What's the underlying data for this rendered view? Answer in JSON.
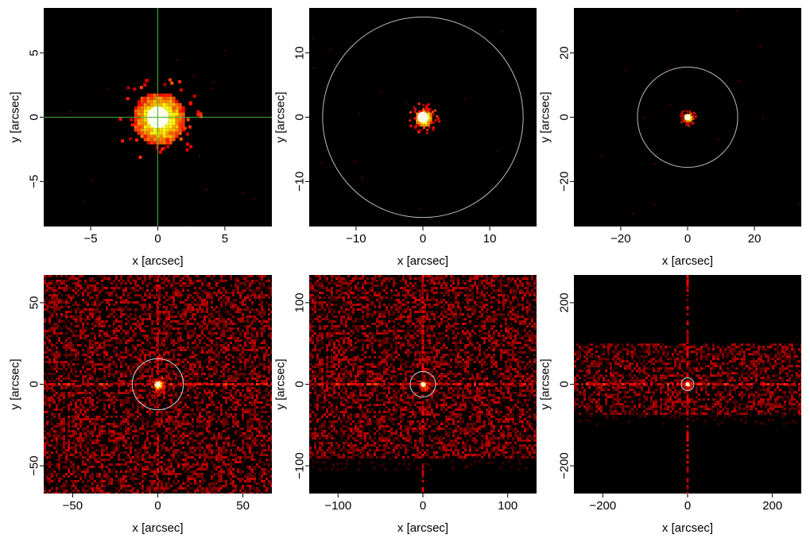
{
  "chart_data": [
    {
      "type": "heatmap",
      "xlabel": "x [arcsec]",
      "ylabel": "y [arcsec]",
      "xlim": [
        -8.5,
        8.5
      ],
      "ylim": [
        -8.5,
        8.5
      ],
      "xticks": [
        -5,
        0,
        5
      ],
      "yticks": [
        -5,
        0,
        5
      ],
      "overlay": "crosshair",
      "overlay_color": "#3fae3f",
      "source_center": [
        0,
        0
      ],
      "source_core_radius": 0.8,
      "source_halo_radius": 2.0,
      "background": "none"
    },
    {
      "type": "heatmap",
      "xlabel": "x [arcsec]",
      "ylabel": "y [arcsec]",
      "xlim": [
        -17,
        17
      ],
      "ylim": [
        -17,
        17
      ],
      "xticks": [
        -10,
        0,
        10
      ],
      "yticks": [
        -10,
        0,
        10
      ],
      "overlay": "circle",
      "overlay_radius": 15,
      "overlay_color": "#bbbbbb",
      "source_center": [
        0,
        0
      ],
      "source_core_radius": 0.8,
      "source_halo_radius": 1.4,
      "background": "none"
    },
    {
      "type": "heatmap",
      "xlabel": "x [arcsec]",
      "ylabel": "y [arcsec]",
      "xlim": [
        -34,
        34
      ],
      "ylim": [
        -34,
        34
      ],
      "xticks": [
        -20,
        0,
        20
      ],
      "yticks": [
        -20,
        0,
        20
      ],
      "overlay": "circle",
      "overlay_radius": 15,
      "overlay_color": "#bbbbbb",
      "source_center": [
        0,
        0
      ],
      "source_core_radius": 0.9,
      "source_halo_radius": 1.5,
      "background": "none"
    },
    {
      "type": "heatmap",
      "xlabel": "x [arcsec]",
      "ylabel": "y [arcsec]",
      "xlim": [
        -67,
        67
      ],
      "ylim": [
        -67,
        67
      ],
      "xticks": [
        -50,
        0,
        50
      ],
      "yticks": [
        -50,
        0,
        50
      ],
      "overlay": "circle",
      "overlay_radius": 15,
      "overlay_color": "#d8d8d8",
      "source_center": [
        0,
        0
      ],
      "source_core_radius": 1.5,
      "source_halo_radius": 3,
      "background": "full",
      "streaks": "cross"
    },
    {
      "type": "heatmap",
      "xlabel": "x [arcsec]",
      "ylabel": "y [arcsec]",
      "xlim": [
        -134,
        134
      ],
      "ylim": [
        -134,
        134
      ],
      "xticks": [
        -100,
        0,
        100
      ],
      "yticks": [
        -100,
        0,
        100
      ],
      "overlay": "circle",
      "overlay_radius": 15,
      "overlay_color": "#d8d8d8",
      "source_center": [
        0,
        0
      ],
      "source_core_radius": 2.5,
      "source_halo_radius": 4,
      "background": "band",
      "band_y": [
        -90,
        134
      ],
      "streaks": "cross"
    },
    {
      "type": "heatmap",
      "xlabel": "x [arcsec]",
      "ylabel": "y [arcsec]",
      "xlim": [
        -268,
        268
      ],
      "ylim": [
        -268,
        268
      ],
      "xticks": [
        -200,
        0,
        200
      ],
      "yticks": [
        -200,
        0,
        200
      ],
      "overlay": "circle",
      "overlay_radius": 15,
      "overlay_color": "#d8d8d8",
      "source_center": [
        0,
        0
      ],
      "source_core_radius": 4,
      "source_halo_radius": 6,
      "background": "band",
      "band_y": [
        -70,
        100
      ],
      "streaks": "cross"
    }
  ]
}
